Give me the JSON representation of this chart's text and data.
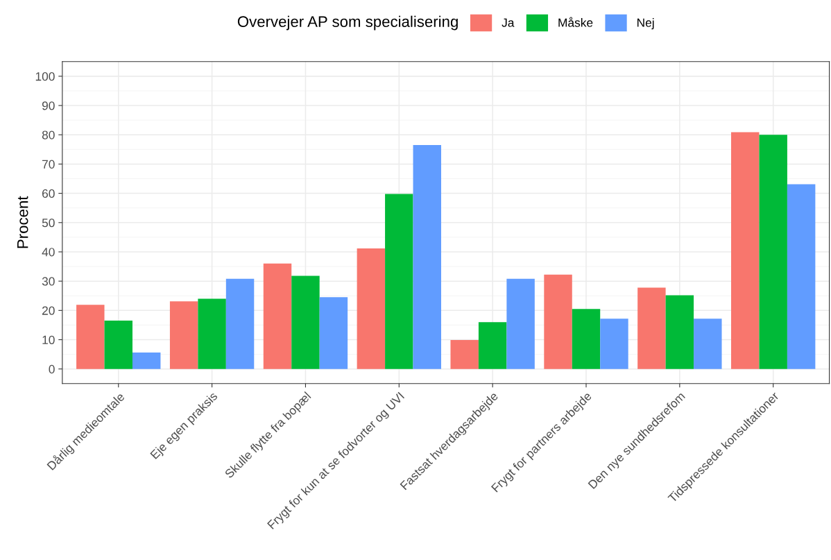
{
  "chart_data": {
    "type": "bar",
    "ylabel": "Procent",
    "legend_title": "Overvejer AP som specialisering",
    "categories": [
      "Dårlig medieomtale",
      "Eje egen praksis",
      "Skulle flytte fra bopæl",
      "Frygt for kun at se fodvorter og UVI",
      "Fastsat hverdagsarbejde",
      "Frygt for partners arbejde",
      "Den nye sundhedsrefom",
      "Tidspressede konsultationer"
    ],
    "series": [
      {
        "name": "Ja",
        "color": "#f8766d",
        "values": [
          21.9,
          23.1,
          36,
          41.2,
          9.9,
          32.2,
          27.8,
          80.9
        ]
      },
      {
        "name": "Måske",
        "color": "#00ba38",
        "values": [
          16.5,
          24,
          31.8,
          59.8,
          16,
          20.5,
          25.2,
          80
        ]
      },
      {
        "name": "Nej",
        "color": "#619cff",
        "values": [
          5.6,
          30.8,
          24.5,
          76.5,
          30.8,
          17.2,
          17.2,
          63.1
        ]
      }
    ],
    "ylim": [
      -5,
      105
    ],
    "yticks": [
      0,
      10,
      20,
      30,
      40,
      50,
      60,
      70,
      80,
      90,
      100
    ],
    "grid": true,
    "legend": "top"
  }
}
